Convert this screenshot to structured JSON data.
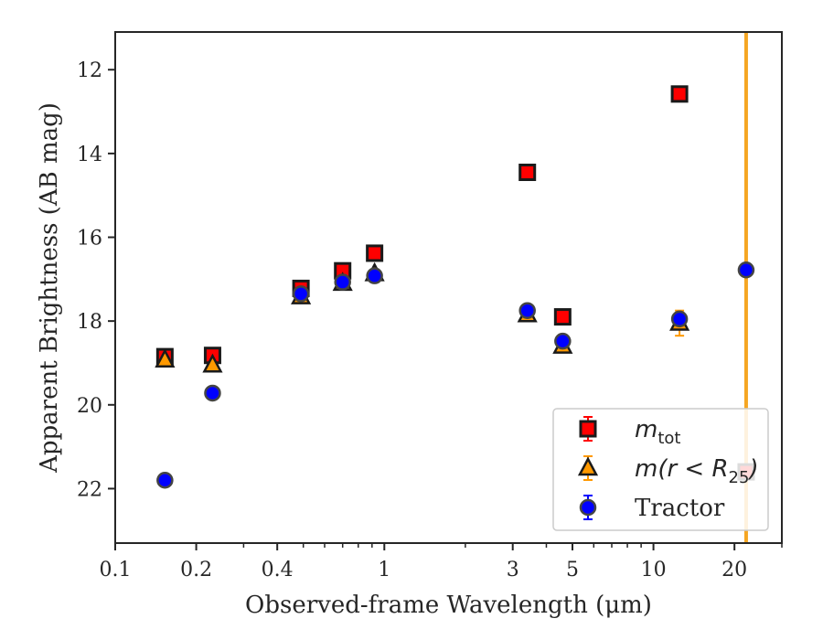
{
  "chart_data": {
    "type": "scatter",
    "title": "",
    "xlabel": "Observed-frame Wavelength (μm)",
    "ylabel": "Apparent Brightness (AB mag)",
    "xscale": "log",
    "xlim": [
      0.1,
      30
    ],
    "ylim": [
      23.3,
      11.1
    ],
    "y_inverted": true,
    "grid": false,
    "legend_position": "bottom-right",
    "x_tick_labels": [
      "0.1",
      "0.2",
      "0.4",
      "1",
      "3",
      "5",
      "10",
      "20"
    ],
    "x_ticks": [
      0.1,
      0.2,
      0.4,
      1,
      3,
      5,
      10,
      20
    ],
    "y_tick_labels": [
      "12",
      "14",
      "16",
      "18",
      "20",
      "22"
    ],
    "y_ticks": [
      12,
      14,
      16,
      18,
      20,
      22
    ],
    "vertical_line": {
      "x": 22.1,
      "color": "#f5a623"
    },
    "series": [
      {
        "name": "m_tot",
        "legend": {
          "base": "m",
          "sub": "tot"
        },
        "marker": "square",
        "color": "#ff0000",
        "edge": "#1a1a1a",
        "points": [
          {
            "x": 0.153,
            "y": 18.85
          },
          {
            "x": 0.23,
            "y": 18.82
          },
          {
            "x": 0.49,
            "y": 17.22
          },
          {
            "x": 0.7,
            "y": 16.8
          },
          {
            "x": 0.92,
            "y": 16.38
          },
          {
            "x": 3.4,
            "y": 14.45
          },
          {
            "x": 4.6,
            "y": 17.9
          },
          {
            "x": 12.5,
            "y": 12.58
          },
          {
            "x": 22.1,
            "y": 21.6
          }
        ]
      },
      {
        "name": "m(r < R25)",
        "legend": {
          "base": "m(r < R",
          "sub": "25",
          "tail": ")"
        },
        "marker": "triangle",
        "color": "#ff9900",
        "edge": "#1a1a1a",
        "points": [
          {
            "x": 0.153,
            "y": 18.93
          },
          {
            "x": 0.23,
            "y": 19.05
          },
          {
            "x": 0.49,
            "y": 17.42
          },
          {
            "x": 0.7,
            "y": 17.1
          },
          {
            "x": 0.92,
            "y": 16.87
          },
          {
            "x": 3.4,
            "y": 17.85
          },
          {
            "x": 4.6,
            "y": 18.6
          },
          {
            "x": 12.5,
            "y": 18.05,
            "err": 0.3
          }
        ]
      },
      {
        "name": "Tractor",
        "legend": {
          "base": "Tractor"
        },
        "marker": "circle",
        "color": "#0000ff",
        "edge": "#444444",
        "points": [
          {
            "x": 0.153,
            "y": 21.8
          },
          {
            "x": 0.23,
            "y": 19.72
          },
          {
            "x": 0.49,
            "y": 17.35
          },
          {
            "x": 0.7,
            "y": 17.07
          },
          {
            "x": 0.92,
            "y": 16.92
          },
          {
            "x": 3.4,
            "y": 17.75
          },
          {
            "x": 4.6,
            "y": 18.48
          },
          {
            "x": 12.5,
            "y": 17.95
          },
          {
            "x": 22.1,
            "y": 16.78
          }
        ]
      }
    ]
  }
}
